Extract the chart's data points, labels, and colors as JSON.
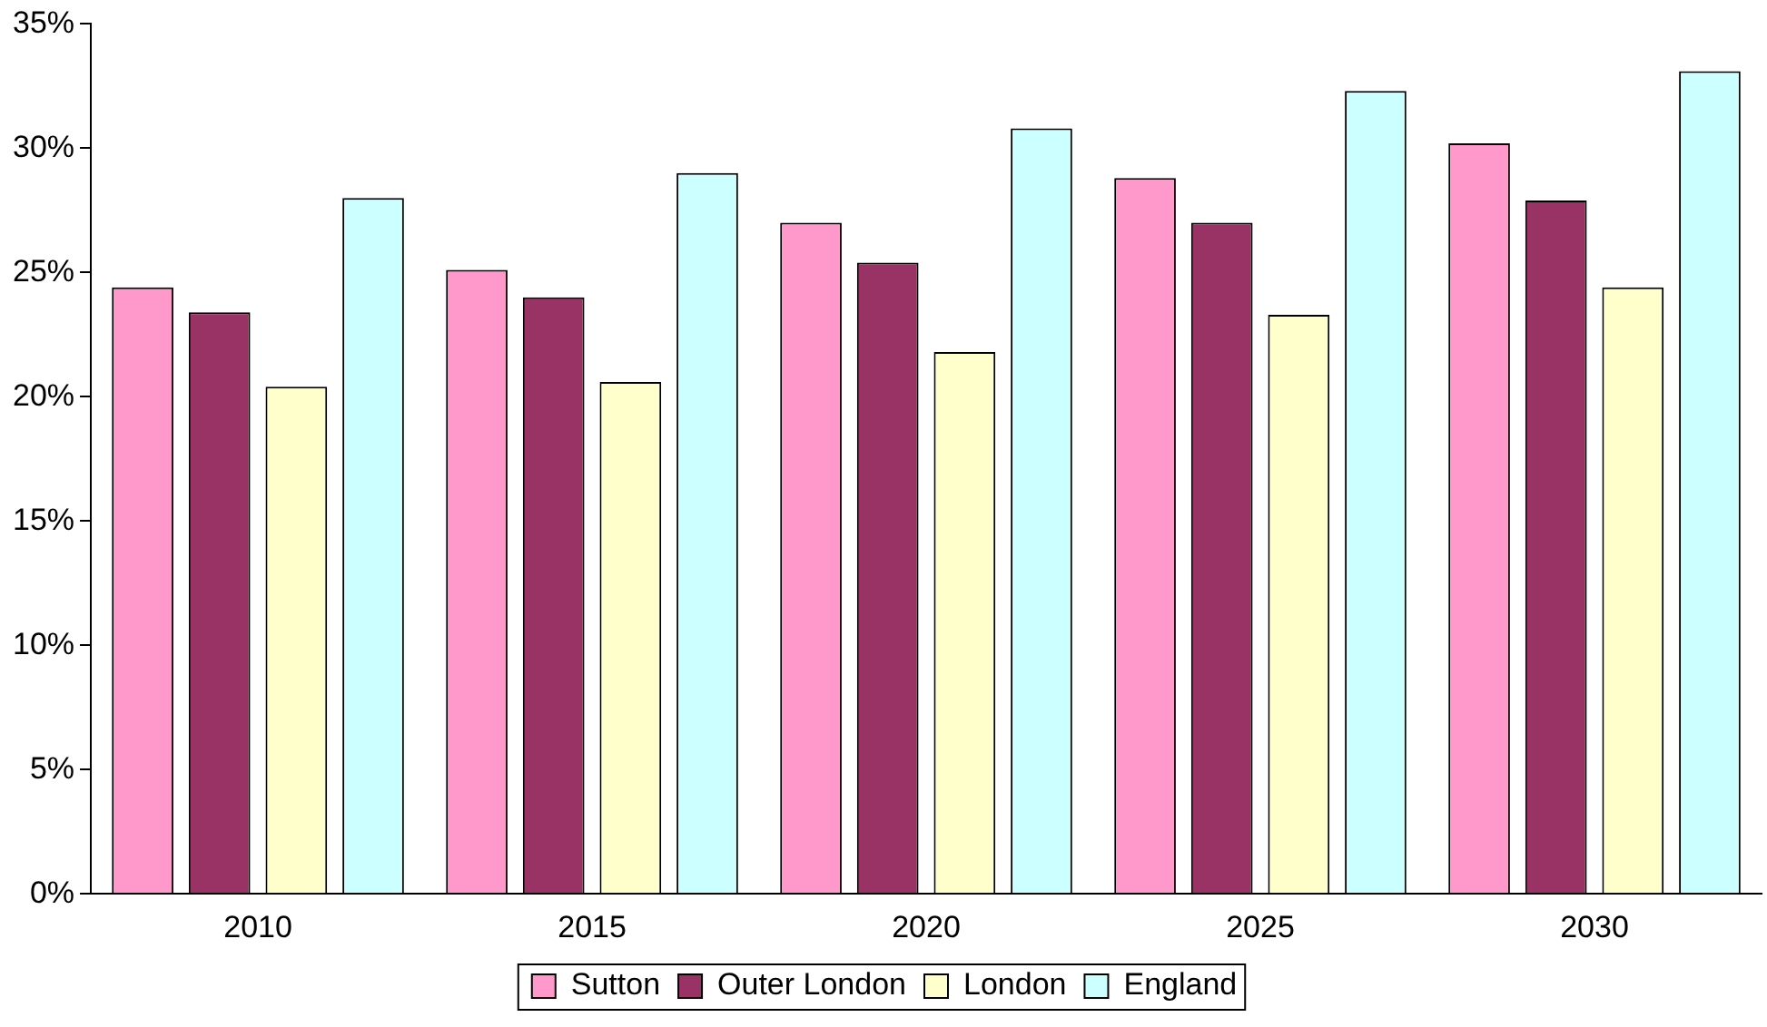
{
  "chart_data": {
    "type": "bar",
    "categories": [
      "2010",
      "2015",
      "2020",
      "2025",
      "2030"
    ],
    "series": [
      {
        "name": "Sutton",
        "color": "#ff99cc",
        "values": [
          24.4,
          25.1,
          27.0,
          28.8,
          30.2
        ]
      },
      {
        "name": "Outer London",
        "color": "#993366",
        "values": [
          23.4,
          24.0,
          25.4,
          27.0,
          27.9
        ]
      },
      {
        "name": "London",
        "color": "#ffffcc",
        "values": [
          20.4,
          20.6,
          21.8,
          23.3,
          24.4
        ]
      },
      {
        "name": "England",
        "color": "#ccffff",
        "values": [
          28.0,
          29.0,
          30.8,
          32.3,
          33.1
        ]
      }
    ],
    "ylim": [
      0,
      35
    ],
    "yticks": [
      {
        "value": 0,
        "label": "0%"
      },
      {
        "value": 5,
        "label": "5%"
      },
      {
        "value": 10,
        "label": "10%"
      },
      {
        "value": 15,
        "label": "15%"
      },
      {
        "value": 20,
        "label": "20%"
      },
      {
        "value": 25,
        "label": "25%"
      },
      {
        "value": 30,
        "label": "30%"
      },
      {
        "value": 35,
        "label": "35%"
      }
    ],
    "grid": false,
    "legend": "bottom"
  }
}
